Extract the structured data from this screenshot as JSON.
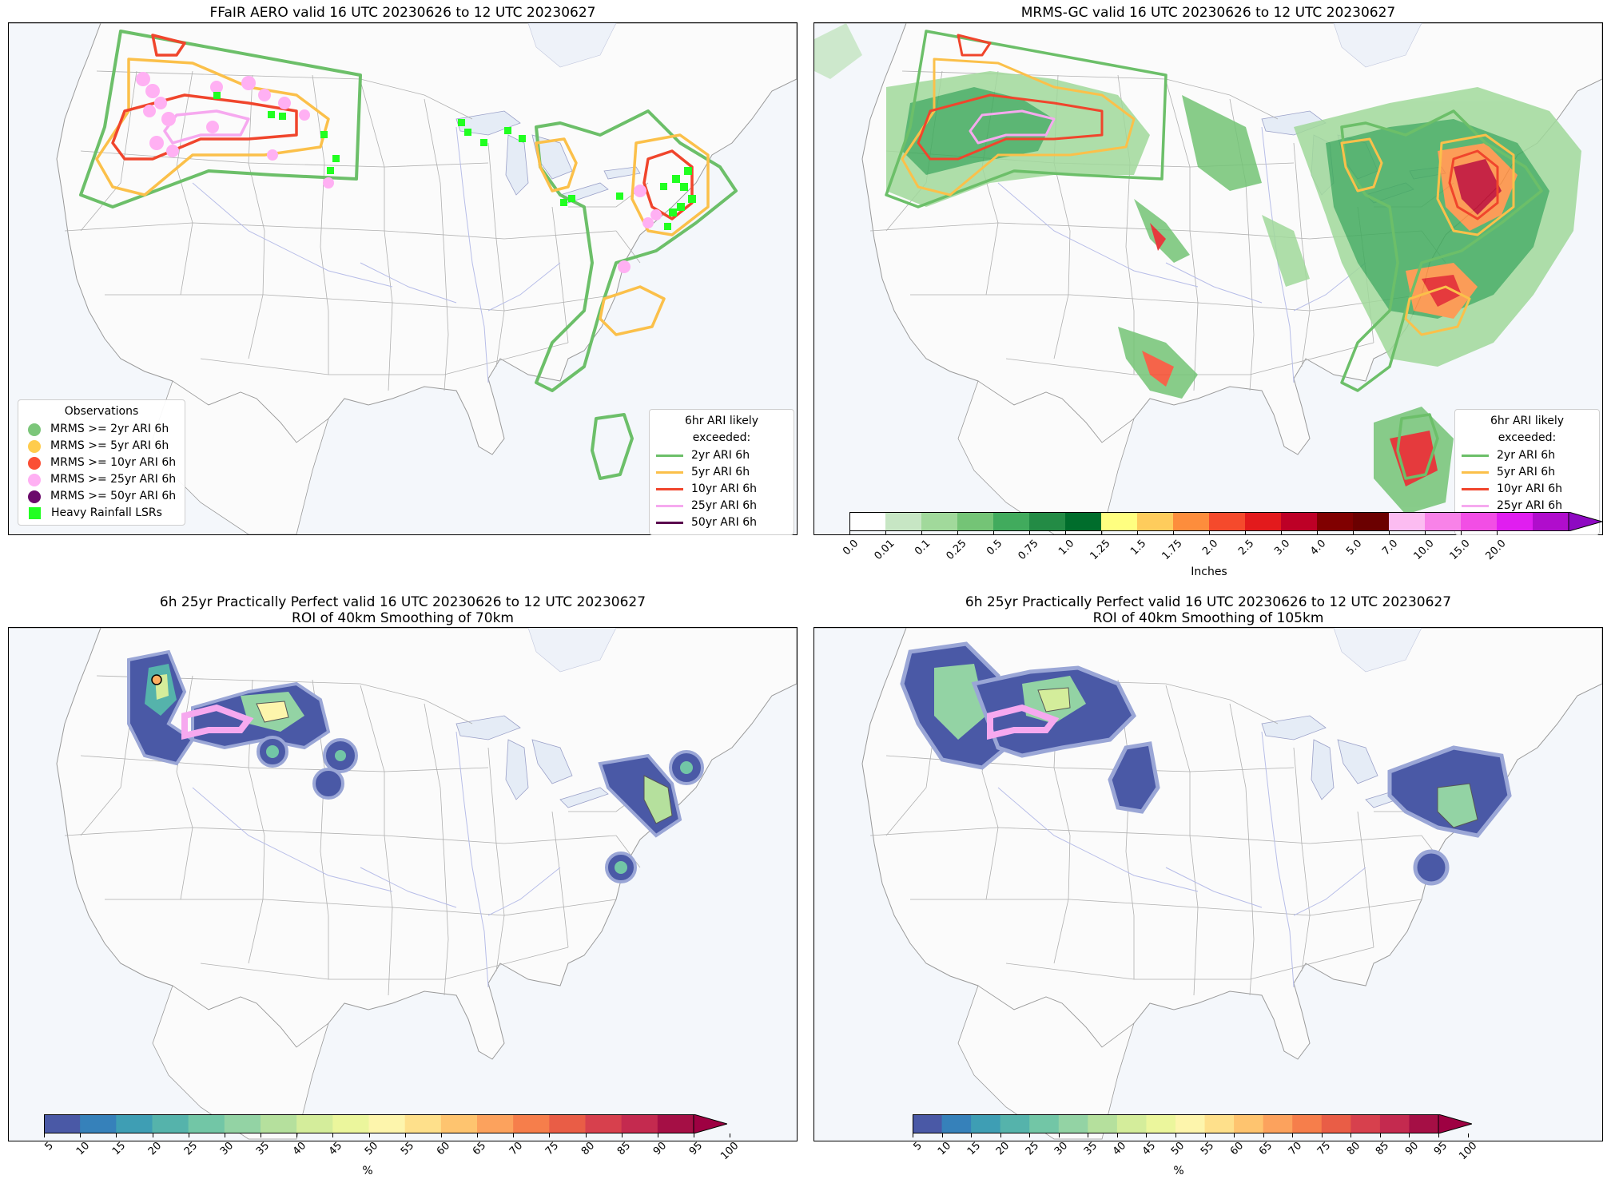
{
  "panels": {
    "tl": {
      "title": "FFaIR AERO valid 16 UTC 20230626 to 12 UTC 20230627"
    },
    "tr": {
      "title": "MRMS-GC valid 16 UTC 20230626 to 12 UTC 20230627"
    },
    "bl": {
      "title_line1": "6h 25yr Practically Perfect valid 16 UTC 20230626 to 12 UTC 20230627",
      "title_line2": "ROI of 40km Smoothing of 70km"
    },
    "br": {
      "title_line1": "6h 25yr Practically Perfect valid 16 UTC 20230626 to 12 UTC 20230627",
      "title_line2": "ROI of 40km Smoothing of 105km"
    }
  },
  "observations_legend": {
    "title": "Observations",
    "items": [
      {
        "label": "MRMS >= 2yr ARI 6h",
        "color": "#7cc67a",
        "marker": "circle"
      },
      {
        "label": "MRMS >= 5yr ARI 6h",
        "color": "#ffcc4d",
        "marker": "circle"
      },
      {
        "label": "MRMS >= 10yr ARI 6h",
        "color": "#fb4f35",
        "marker": "circle"
      },
      {
        "label": "MRMS >= 25yr ARI 6h",
        "color": "#ffb0f3",
        "marker": "circle"
      },
      {
        "label": "MRMS >= 50yr ARI 6h",
        "color": "#6b0a6b",
        "marker": "circle"
      },
      {
        "label": "Heavy Rainfall LSRs",
        "color": "#21ff21",
        "marker": "square"
      }
    ]
  },
  "ari_legend": {
    "title": "6hr ARI likely exceeded:",
    "items": [
      {
        "label": "2yr ARI 6h",
        "color": "#6cbf69"
      },
      {
        "label": "5yr ARI 6h",
        "color": "#fbc04a"
      },
      {
        "label": "10yr ARI 6h",
        "color": "#f0452c"
      },
      {
        "label": "25yr ARI 6h",
        "color": "#f6a9ef"
      },
      {
        "label": "50yr ARI 6h",
        "color": "#5a0a4e"
      }
    ]
  },
  "precip_colorbar": {
    "label": "Inches",
    "ticks": [
      "0.0",
      "0.01",
      "0.1",
      "0.25",
      "0.5",
      "0.75",
      "1.0",
      "1.25",
      "1.5",
      "1.75",
      "2.0",
      "2.5",
      "3.0",
      "4.0",
      "5.0",
      "7.0",
      "10.0",
      "15.0",
      "20.0"
    ],
    "colors": [
      "#ffffff",
      "#c7e6c4",
      "#a1d99b",
      "#74c476",
      "#41ab5d",
      "#238b45",
      "#006d2c",
      "#ffff80",
      "#fecc5c",
      "#fd8d3c",
      "#f54a2c",
      "#e31a1c",
      "#bd0026",
      "#800000",
      "#6b0000",
      "#fcbcf1",
      "#f882e8",
      "#f24ee5",
      "#e01ef0",
      "#b00dcc",
      "#8e09c2"
    ]
  },
  "prob_colorbar": {
    "label": "%",
    "ticks": [
      "5",
      "10",
      "15",
      "20",
      "25",
      "30",
      "35",
      "40",
      "45",
      "50",
      "55",
      "60",
      "65",
      "70",
      "75",
      "80",
      "85",
      "90",
      "95",
      "100"
    ],
    "colors": [
      "#4a59a6",
      "#3681ba",
      "#3e9eb4",
      "#55b3ab",
      "#72c6a6",
      "#93d3a4",
      "#b5e09d",
      "#d4ed9b",
      "#ebf69c",
      "#fdf5ac",
      "#fee08b",
      "#fec46f",
      "#fca25d",
      "#f67e4b",
      "#e95d46",
      "#d7404d",
      "#c42a4f",
      "#a50f45",
      "#9e0142"
    ]
  },
  "chart_data": [
    {
      "type": "map",
      "title": "FFaIR AERO valid 16 UTC 20230626 to 12 UTC 20230627",
      "legend": "lower-left and lower-right"
    },
    {
      "type": "map",
      "title": "MRMS-GC valid 16 UTC 20230626 to 12 UTC 20230627",
      "colorbar_units": "Inches"
    },
    {
      "type": "map",
      "title": "6h 25yr Practically Perfect valid 16 UTC 20230626 to 12 UTC 20230627 ROI of 40km Smoothing of 70km",
      "colorbar_units": "%"
    },
    {
      "type": "map",
      "title": "6h 25yr Practically Perfect valid 16 UTC 20230626 to 12 UTC 20230627 ROI of 40km Smoothing of 105km",
      "colorbar_units": "%"
    }
  ]
}
